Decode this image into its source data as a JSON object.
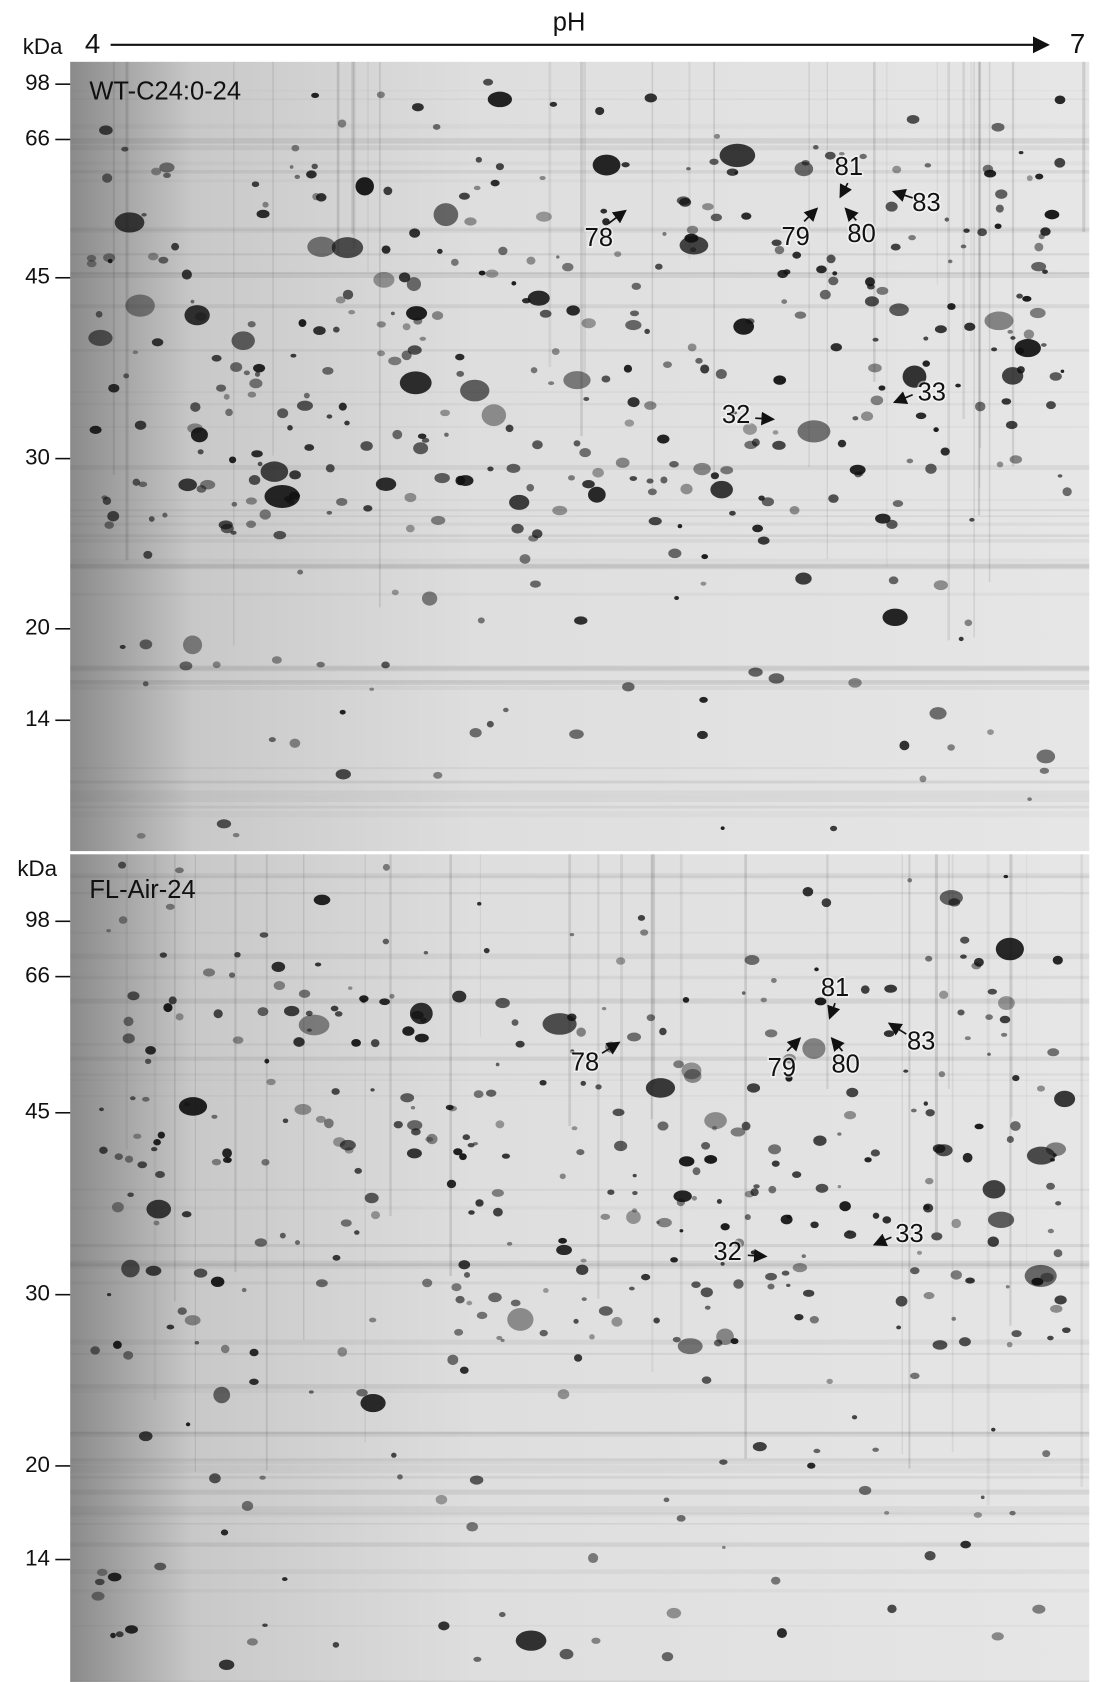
{
  "header": {
    "axis_title": "pH",
    "start": "4",
    "end": "7"
  },
  "panels": [
    {
      "label": "WT-C24:0-24",
      "unit": "kDa",
      "ticks": [
        98,
        66,
        45,
        30,
        20,
        14
      ],
      "spots": [
        "81",
        "83",
        "78",
        "79",
        "80",
        "32",
        "33"
      ]
    },
    {
      "label": "FL-Air-24",
      "unit": "kDa",
      "ticks": [
        98,
        66,
        45,
        30,
        20,
        14
      ],
      "spots": [
        "81",
        "83",
        "78",
        "79",
        "80",
        "32",
        "33"
      ]
    }
  ]
}
